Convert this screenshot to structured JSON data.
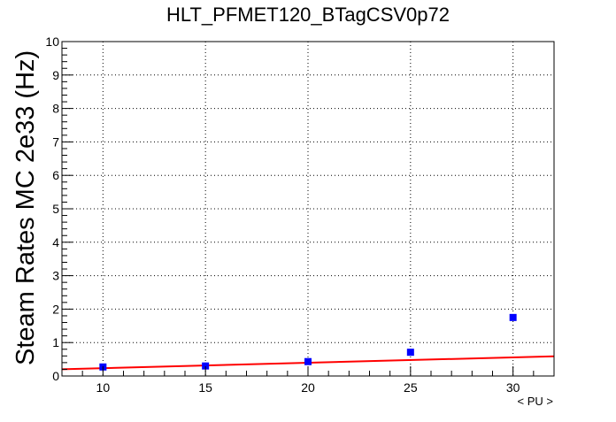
{
  "chart_data": {
    "type": "scatter",
    "title": "HLT_PFMET120_BTagCSV0p72",
    "xlabel": "< PU >",
    "ylabel": "Steam Rates MC 2e33 (Hz)",
    "xlim": [
      8,
      32
    ],
    "ylim": [
      0,
      10
    ],
    "x_ticks": [
      10,
      15,
      20,
      25,
      30
    ],
    "y_ticks": [
      0,
      1,
      2,
      3,
      4,
      5,
      6,
      7,
      8,
      9,
      10
    ],
    "grid": true,
    "series": [
      {
        "kind": "points",
        "color": "#0000ff",
        "x": [
          10,
          15,
          20,
          25,
          30
        ],
        "y": [
          0.27,
          0.3,
          0.43,
          0.71,
          1.75
        ]
      },
      {
        "kind": "fit-line",
        "color": "#ff0000",
        "x": [
          8,
          32
        ],
        "y": [
          0.2,
          0.59
        ]
      }
    ]
  }
}
